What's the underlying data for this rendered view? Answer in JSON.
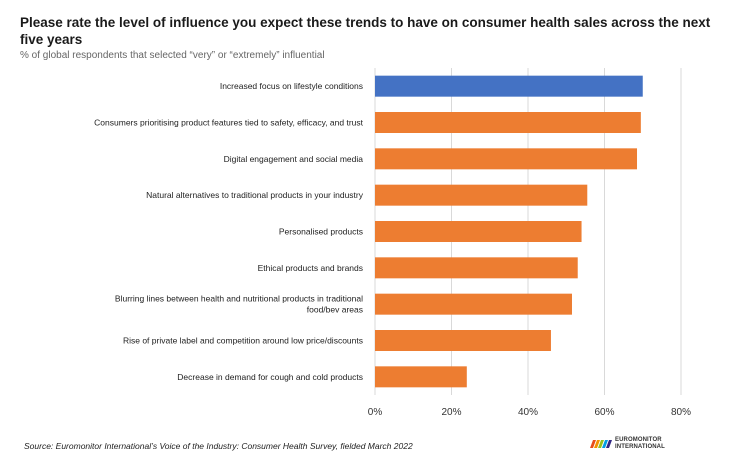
{
  "chart_data": {
    "type": "bar",
    "orientation": "horizontal",
    "title": "Please rate the level of influence you expect these trends to have on consumer health sales across the next five years",
    "subtitle": "% of global respondents that selected “very” or “extremely” influential",
    "categories": [
      [
        "Increased focus on lifestyle conditions"
      ],
      [
        "Consumers prioritising product features tied to safety, efficacy, and trust"
      ],
      [
        "Digital engagement and social media"
      ],
      [
        "Natural alternatives to traditional products in your industry"
      ],
      [
        "Personalised products"
      ],
      [
        "Ethical products and brands"
      ],
      [
        "Blurring lines between health and nutritional products in traditional",
        "food/bev areas"
      ],
      [
        "Rise of private label and competition around low price/discounts"
      ],
      [
        "Decrease in demand for cough and cold products"
      ]
    ],
    "values": [
      70,
      69.5,
      68.5,
      55.5,
      54,
      53,
      51.5,
      46,
      24
    ],
    "bar_colors": [
      "#4472C4",
      "#ED7D31",
      "#ED7D31",
      "#ED7D31",
      "#ED7D31",
      "#ED7D31",
      "#ED7D31",
      "#ED7D31",
      "#ED7D31"
    ],
    "xlim": [
      0,
      80
    ],
    "xticks": [
      0,
      20,
      40,
      60,
      80
    ],
    "tick_suffix": "%",
    "grid": true,
    "xlabel": "",
    "ylabel": ""
  },
  "colors": {
    "highlight": "#4472C4",
    "bar": "#ED7D31",
    "grid": "#D9D9D9"
  },
  "source": "Source: Euromonitor International’s Voice of the Industry: Consumer Health Survey, fielded March 2022",
  "logo": {
    "line1": "EUROMONITOR",
    "line2": "INTERNATIONAL"
  }
}
